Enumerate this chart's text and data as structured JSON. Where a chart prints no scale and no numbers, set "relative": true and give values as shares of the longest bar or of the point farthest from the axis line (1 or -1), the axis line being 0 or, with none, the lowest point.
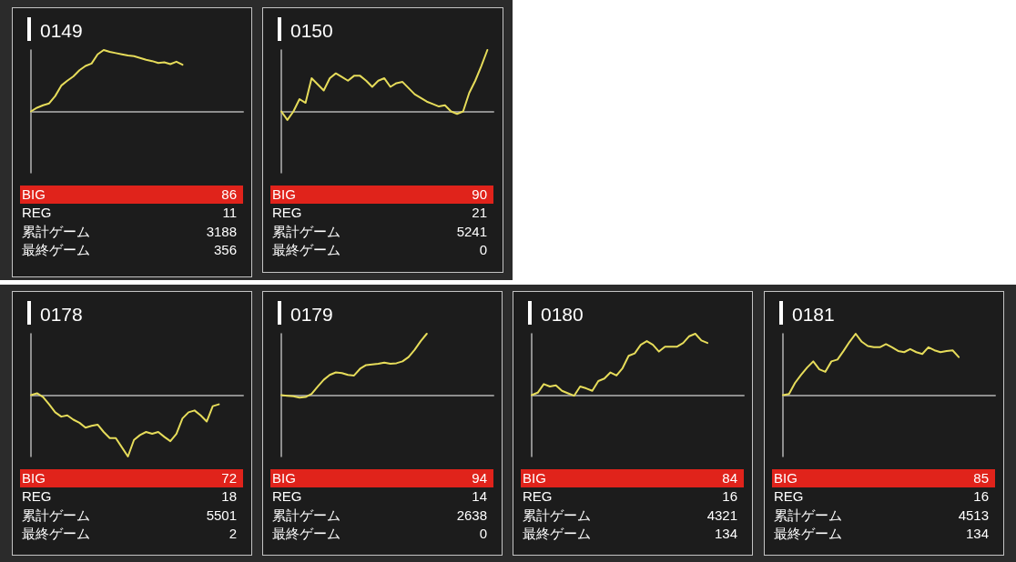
{
  "chart_data": [
    {
      "type": "line",
      "title": "0149",
      "relative": true,
      "marker": "none",
      "grid": false,
      "color": "#e6dc5a",
      "categories": [
        null,
        null,
        null,
        null,
        null,
        null,
        null,
        null,
        null,
        null,
        null,
        null,
        null,
        null,
        null,
        null,
        null,
        null,
        null,
        null,
        null,
        null,
        null,
        null,
        null,
        null,
        null,
        null,
        null,
        null,
        null,
        null,
        null,
        null,
        null,
        null
      ],
      "values": [
        0,
        0.06,
        0.1,
        0.13,
        0.25,
        0.42,
        0.5,
        0.57,
        0.67,
        0.74,
        0.78,
        0.93,
        1,
        0.97,
        0.95,
        0.93,
        0.91,
        0.9,
        0.87,
        0.84,
        0.82,
        0.79,
        0.8,
        0.77,
        0.81,
        0.76,
        null,
        null,
        null,
        null,
        null,
        null,
        null,
        null,
        null,
        null
      ],
      "annotations": [
        "BIG",
        "86",
        "REG",
        "11",
        "累計ゲーム",
        "3188",
        "最終ゲーム",
        "356"
      ]
    },
    {
      "type": "line",
      "title": "0150",
      "relative": true,
      "marker": "none",
      "grid": false,
      "color": "#e6dc5a",
      "categories": [
        null,
        null,
        null,
        null,
        null,
        null,
        null,
        null,
        null,
        null,
        null,
        null,
        null,
        null,
        null,
        null,
        null,
        null,
        null,
        null,
        null,
        null,
        null,
        null,
        null,
        null,
        null,
        null,
        null,
        null,
        null,
        null,
        null,
        null,
        null,
        null
      ],
      "values": [
        0,
        -0.14,
        0,
        0.2,
        0.14,
        0.54,
        0.44,
        0.34,
        0.54,
        0.62,
        0.56,
        0.5,
        0.58,
        0.58,
        0.5,
        0.4,
        0.5,
        0.54,
        0.4,
        0.46,
        0.48,
        0.38,
        0.28,
        0.22,
        0.16,
        0.12,
        0.08,
        0.1,
        0,
        -0.04,
        0,
        0.3,
        0.5,
        0.74,
        1,
        null
      ],
      "annotations": [
        "BIG",
        "90",
        "REG",
        "21",
        "累計ゲーム",
        "5241",
        "最終ゲーム",
        "0"
      ]
    },
    {
      "type": "line",
      "title": "0178",
      "relative": true,
      "marker": "none",
      "grid": false,
      "color": "#e6dc5a",
      "categories": [
        null,
        null,
        null,
        null,
        null,
        null,
        null,
        null,
        null,
        null,
        null,
        null,
        null,
        null,
        null,
        null,
        null,
        null,
        null,
        null,
        null,
        null,
        null,
        null,
        null,
        null,
        null,
        null,
        null,
        null,
        null,
        null,
        null,
        null,
        null,
        null
      ],
      "values": [
        0,
        0.03,
        -0.03,
        -0.15,
        -0.28,
        -0.35,
        -0.33,
        -0.4,
        -0.45,
        -0.53,
        -0.5,
        -0.48,
        -0.6,
        -0.7,
        -0.7,
        -0.85,
        -1,
        -0.73,
        -0.65,
        -0.6,
        -0.63,
        -0.6,
        -0.68,
        -0.75,
        -0.63,
        -0.38,
        -0.28,
        -0.25,
        -0.33,
        -0.43,
        -0.18,
        -0.15,
        null,
        null,
        null,
        null
      ],
      "annotations": [
        "BIG",
        "72",
        "REG",
        "18",
        "累計ゲーム",
        "5501",
        "最終ゲーム",
        "2"
      ]
    },
    {
      "type": "line",
      "title": "0179",
      "relative": true,
      "marker": "none",
      "grid": false,
      "color": "#e6dc5a",
      "categories": [
        null,
        null,
        null,
        null,
        null,
        null,
        null,
        null,
        null,
        null,
        null,
        null,
        null,
        null,
        null,
        null,
        null,
        null,
        null,
        null,
        null,
        null,
        null,
        null,
        null,
        null,
        null,
        null,
        null,
        null,
        null,
        null,
        null,
        null,
        null,
        null
      ],
      "values": [
        0,
        -0.01,
        -0.02,
        -0.04,
        -0.03,
        0.02,
        0.14,
        0.25,
        0.33,
        0.37,
        0.36,
        0.33,
        0.32,
        0.43,
        0.49,
        0.5,
        0.51,
        0.53,
        0.51,
        0.52,
        0.55,
        0.62,
        0.74,
        0.88,
        1,
        null,
        null,
        null,
        null,
        null,
        null,
        null,
        null,
        null,
        null,
        null
      ],
      "annotations": [
        "BIG",
        "94",
        "REG",
        "14",
        "累計ゲーム",
        "2638",
        "最終ゲーム",
        "0"
      ]
    },
    {
      "type": "line",
      "title": "0180",
      "relative": true,
      "marker": "none",
      "grid": false,
      "color": "#e6dc5a",
      "categories": [
        null,
        null,
        null,
        null,
        null,
        null,
        null,
        null,
        null,
        null,
        null,
        null,
        null,
        null,
        null,
        null,
        null,
        null,
        null,
        null,
        null,
        null,
        null,
        null,
        null,
        null,
        null,
        null,
        null,
        null,
        null,
        null,
        null,
        null,
        null,
        null
      ],
      "values": [
        0,
        0.04,
        0.18,
        0.14,
        0.16,
        0.07,
        0.03,
        -0.01,
        0.14,
        0.11,
        0.07,
        0.23,
        0.27,
        0.37,
        0.32,
        0.44,
        0.64,
        0.68,
        0.82,
        0.88,
        0.82,
        0.71,
        0.79,
        0.79,
        0.79,
        0.85,
        0.96,
        1,
        0.89,
        0.85,
        null,
        null,
        null,
        null,
        null,
        null
      ],
      "annotations": [
        "BIG",
        "84",
        "REG",
        "16",
        "累計ゲーム",
        "4321",
        "最終ゲーム",
        "134"
      ]
    },
    {
      "type": "line",
      "title": "0181",
      "relative": true,
      "marker": "none",
      "grid": false,
      "color": "#e6dc5a",
      "categories": [
        null,
        null,
        null,
        null,
        null,
        null,
        null,
        null,
        null,
        null,
        null,
        null,
        null,
        null,
        null,
        null,
        null,
        null,
        null,
        null,
        null,
        null,
        null,
        null,
        null,
        null,
        null,
        null,
        null,
        null,
        null,
        null,
        null,
        null,
        null,
        null
      ],
      "values": [
        0,
        0.02,
        0.2,
        0.33,
        0.45,
        0.55,
        0.42,
        0.38,
        0.55,
        0.58,
        0.72,
        0.87,
        1,
        0.87,
        0.8,
        0.78,
        0.78,
        0.83,
        0.78,
        0.72,
        0.7,
        0.75,
        0.7,
        0.67,
        0.78,
        0.73,
        0.7,
        0.72,
        0.73,
        0.62,
        null,
        null,
        null,
        null,
        null,
        null
      ],
      "annotations": [
        "BIG",
        "85",
        "REG",
        "16",
        "累計ゲーム",
        "4513",
        "最終ゲーム",
        "134"
      ]
    }
  ]
}
